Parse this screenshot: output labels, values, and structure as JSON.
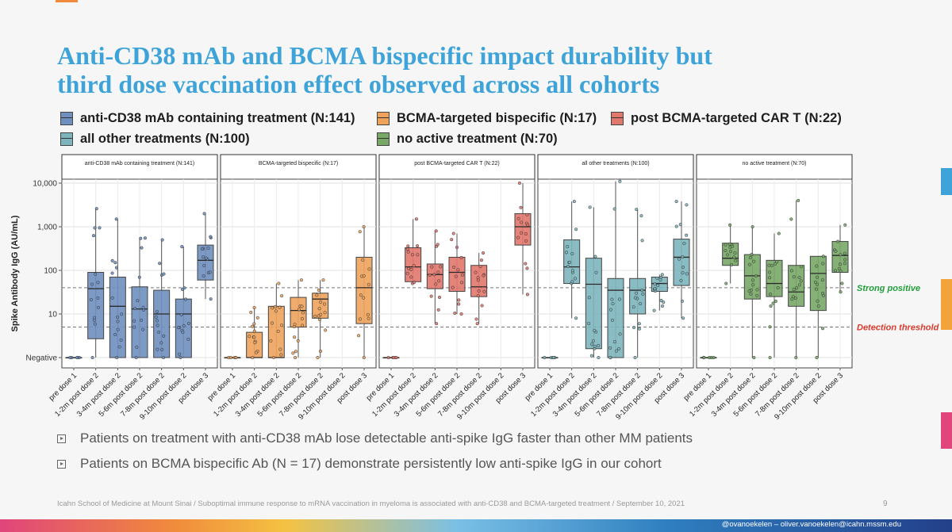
{
  "slide": {
    "title_line1": "Anti-CD38 mAb and BCMA bispecific impact durability but",
    "title_line2": "third dose vaccination effect observed across all cohorts",
    "footer": "Icahn School of Medicine at Mount Sinai / Suboptimal immune response to mRNA vaccination in myeloma is associated with anti-CD38 and BCMA-targeted treatment / September 10, 2021",
    "page_number": "9",
    "contact": "@ovanoekelen – oliver.vanoekelen@icahn.mssm.edu",
    "bullets": [
      "Patients on treatment with anti-CD38 mAb lose detectable anti-spike IgG faster than other MM patients",
      "Patients on BCMA bispecific Ab (N = 17) demonstrate persistently low anti-spike IgG in our cohort"
    ],
    "colors": {
      "title": "#3ea3d9",
      "strong_line": "#1f9e3a",
      "detection_line": "#d93a2b"
    }
  },
  "legend": [
    {
      "label": "anti-CD38 mAb containing treatment (N:141)",
      "color": "#6f8fbf"
    },
    {
      "label": "BCMA-targeted bispecific (N:17)",
      "color": "#eea35c"
    },
    {
      "label": "post BCMA-targeted CAR T (N:22)",
      "color": "#e2776c"
    },
    {
      "label": "all other treatments (N:100)",
      "color": "#7db5bc"
    },
    {
      "label": "no active treatment (N:70)",
      "color": "#78a868"
    }
  ],
  "chart_data": {
    "type": "box",
    "ylabel": "Spike Antibody IgG (AU/mL)",
    "y_scale": "log",
    "y_ticks": [
      {
        "label": "Negative",
        "value": 1
      },
      {
        "label": "10",
        "value": 10
      },
      {
        "label": "100",
        "value": 100
      },
      {
        "label": "1,000",
        "value": 1000
      },
      {
        "label": "10,000",
        "value": 10000
      }
    ],
    "categories": [
      "pre dose 1",
      "1-2m post dose 2",
      "3-4m post dose 2",
      "5-6m post dose 2",
      "7-8m post dose 2",
      "9-10m post dose 2",
      "post dose 3"
    ],
    "reference_lines": [
      {
        "label": "Strong positive",
        "value": 40,
        "color": "#1f9e3a"
      },
      {
        "label": "Detection threshold",
        "value": 5,
        "color": "#d93a2b"
      }
    ],
    "panels": [
      {
        "name": "anti-CD38 mAb containing treatment (N:141)",
        "color": "#6f8fbf",
        "boxes": [
          {
            "q1": 1,
            "median": 1,
            "q3": 1,
            "min": 1,
            "max": 1
          },
          {
            "q1": 2.7,
            "median": 38,
            "q3": 90,
            "min": 1,
            "max": 2600
          },
          {
            "q1": 1,
            "median": 15,
            "q3": 70,
            "min": 1,
            "max": 1500
          },
          {
            "q1": 1,
            "median": 13,
            "q3": 42,
            "min": 1,
            "max": 550
          },
          {
            "q1": 1,
            "median": 10,
            "q3": 35,
            "min": 1,
            "max": 500
          },
          {
            "q1": 1,
            "median": 10,
            "q3": 22,
            "min": 1,
            "max": 350
          },
          {
            "q1": 60,
            "median": 170,
            "q3": 380,
            "min": 22,
            "max": 2000
          }
        ]
      },
      {
        "name": "BCMA-targeted bispecific (N:17)",
        "color": "#eea35c",
        "boxes": [
          {
            "q1": 1,
            "median": 1,
            "q3": 1,
            "min": 1,
            "max": 1
          },
          {
            "q1": 1,
            "median": 1,
            "q3": 3.8,
            "min": 1,
            "max": 14
          },
          {
            "q1": 1,
            "median": 1,
            "q3": 15,
            "min": 1,
            "max": 50
          },
          {
            "q1": 5,
            "median": 12,
            "q3": 24,
            "min": 1,
            "max": 60
          },
          {
            "q1": 8,
            "median": 22,
            "q3": 30,
            "min": 1,
            "max": 60
          },
          null,
          {
            "q1": 6,
            "median": 40,
            "q3": 200,
            "min": 1,
            "max": 1000
          }
        ]
      },
      {
        "name": "post BCMA-targeted CAR T (N:22)",
        "color": "#e2776c",
        "boxes": [
          {
            "q1": 1,
            "median": 1,
            "q3": 1,
            "min": 1,
            "max": 1
          },
          {
            "q1": 55,
            "median": 120,
            "q3": 330,
            "min": 50,
            "max": 1500
          },
          {
            "q1": 38,
            "median": 80,
            "q3": 140,
            "min": 6,
            "max": 800
          },
          {
            "q1": 33,
            "median": 90,
            "q3": 200,
            "min": 10,
            "max": 700
          },
          {
            "q1": 25,
            "median": 42,
            "q3": 130,
            "min": 6,
            "max": 250
          },
          null,
          {
            "q1": 380,
            "median": 1000,
            "q3": 2000,
            "min": 28,
            "max": 10000
          }
        ]
      },
      {
        "name": "all other treatments (N:100)",
        "color": "#7db5bc",
        "boxes": [
          {
            "q1": 1,
            "median": 1,
            "q3": 1,
            "min": 1,
            "max": 1
          },
          {
            "q1": 50,
            "median": 120,
            "q3": 500,
            "min": 8,
            "max": 3800
          },
          {
            "q1": 1.6,
            "median": 48,
            "q3": 190,
            "min": 1,
            "max": 2800
          },
          {
            "q1": 1,
            "median": 35,
            "q3": 65,
            "min": 1,
            "max": 11000
          },
          {
            "q1": 10,
            "median": 35,
            "q3": 65,
            "min": 1,
            "max": 2500
          },
          {
            "q1": 33,
            "median": 50,
            "q3": 70,
            "min": 12,
            "max": 80
          },
          {
            "q1": 45,
            "median": 200,
            "q3": 520,
            "min": 8,
            "max": 3800
          }
        ]
      },
      {
        "name": "no active treatment (N:70)",
        "color": "#78a868",
        "boxes": [
          {
            "q1": 1,
            "median": 1,
            "q3": 1,
            "min": 1,
            "max": 1
          },
          {
            "q1": 130,
            "median": 190,
            "q3": 420,
            "min": 50,
            "max": 1100
          },
          {
            "q1": 22,
            "median": 75,
            "q3": 230,
            "min": 1,
            "max": 1000
          },
          {
            "q1": 25,
            "median": 50,
            "q3": 170,
            "min": 1,
            "max": 700
          },
          {
            "q1": 15,
            "median": 32,
            "q3": 130,
            "min": 1,
            "max": 4000
          },
          {
            "q1": 12,
            "median": 85,
            "q3": 210,
            "min": 1,
            "max": 210
          },
          {
            "q1": 90,
            "median": 220,
            "q3": 460,
            "min": 32,
            "max": 1100
          }
        ]
      }
    ]
  }
}
